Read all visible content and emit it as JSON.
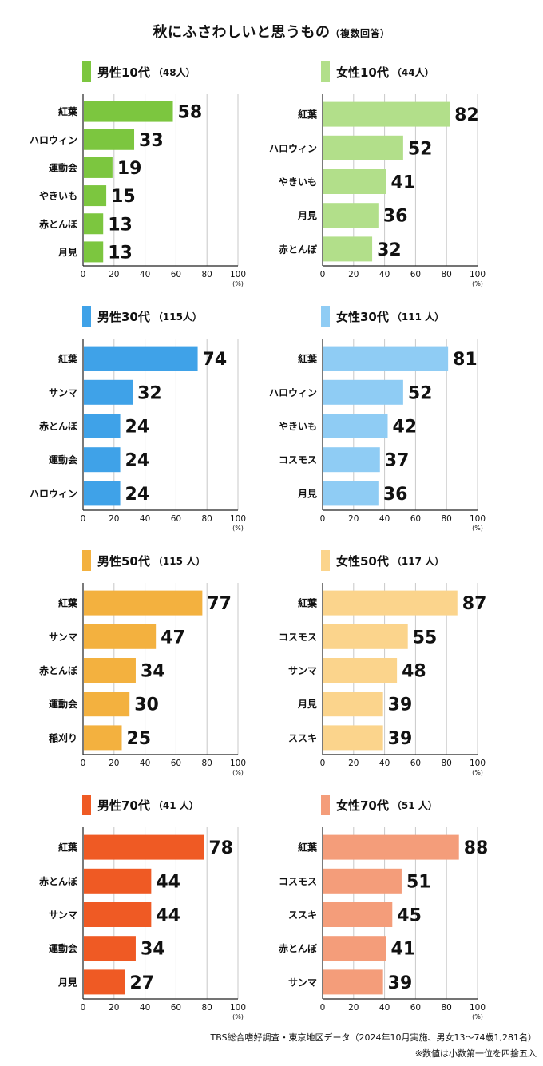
{
  "title": "秋にふさわしいと思うもの",
  "title_note": "（複数回答）",
  "footer": {
    "source": "TBS総合嗜好調査・東京地区データ（2024年10月実施、男女13〜74歳1,281名）",
    "note": "※数値は小数第一位を四捨五入"
  },
  "chart_data": [
    {
      "type": "bar",
      "title": "男性10代",
      "n": "（48人）",
      "color": "#7cc63f",
      "categories": [
        "紅葉",
        "ハロウィン",
        "運動会",
        "やきいも",
        "赤とんぼ",
        "月見"
      ],
      "values": [
        58,
        33,
        19,
        15,
        13,
        13
      ],
      "xticks": [
        "0",
        "20",
        "40",
        "60",
        "80",
        "100"
      ],
      "unit": "(%)",
      "xlim": [
        0,
        100
      ]
    },
    {
      "type": "bar",
      "title": "女性10代",
      "n": "（44人）",
      "color": "#b2df8a",
      "categories": [
        "紅葉",
        "ハロウィン",
        "やきいも",
        "月見",
        "赤とんぼ"
      ],
      "values": [
        82,
        52,
        41,
        36,
        32
      ],
      "xticks": [
        "0",
        "20",
        "40",
        "60",
        "80",
        "100"
      ],
      "unit": "(%)",
      "xlim": [
        0,
        100
      ]
    },
    {
      "type": "bar",
      "title": "男性30代",
      "n": "（115人）",
      "color": "#3fa2e8",
      "categories": [
        "紅葉",
        "サンマ",
        "赤とんぼ",
        "運動会",
        "ハロウィン"
      ],
      "values": [
        74,
        32,
        24,
        24,
        24
      ],
      "xticks": [
        "0",
        "20",
        "40",
        "60",
        "80",
        "100"
      ],
      "unit": "(%)",
      "xlim": [
        0,
        100
      ]
    },
    {
      "type": "bar",
      "title": "女性30代",
      "n": "（111 人）",
      "color": "#8fccf4",
      "categories": [
        "紅葉",
        "ハロウィン",
        "やきいも",
        "コスモス",
        "月見"
      ],
      "values": [
        81,
        52,
        42,
        37,
        36
      ],
      "xticks": [
        "0",
        "20",
        "40",
        "60",
        "80",
        "100"
      ],
      "unit": "(%)",
      "xlim": [
        0,
        100
      ]
    },
    {
      "type": "bar",
      "title": "男性50代",
      "n": "（115 人）",
      "color": "#f3b13f",
      "categories": [
        "紅葉",
        "サンマ",
        "赤とんぼ",
        "運動会",
        "稲刈り"
      ],
      "values": [
        77,
        47,
        34,
        30,
        25
      ],
      "xticks": [
        "0",
        "20",
        "40",
        "60",
        "80",
        "100"
      ],
      "unit": "(%)",
      "xlim": [
        0,
        100
      ]
    },
    {
      "type": "bar",
      "title": "女性50代",
      "n": "（117 人）",
      "color": "#fbd48c",
      "categories": [
        "紅葉",
        "コスモス",
        "サンマ",
        "月見",
        "ススキ"
      ],
      "values": [
        87,
        55,
        48,
        39,
        39
      ],
      "xticks": [
        "0",
        "20",
        "40",
        "60",
        "80",
        "100"
      ],
      "unit": "(%)",
      "xlim": [
        0,
        100
      ]
    },
    {
      "type": "bar",
      "title": "男性70代",
      "n": "（41 人）",
      "color": "#ef5a24",
      "categories": [
        "紅葉",
        "赤とんぼ",
        "サンマ",
        "運動会",
        "月見"
      ],
      "values": [
        78,
        44,
        44,
        34,
        27
      ],
      "xticks": [
        "0",
        "20",
        "40",
        "60",
        "80",
        "100"
      ],
      "unit": "(%)",
      "xlim": [
        0,
        100
      ]
    },
    {
      "type": "bar",
      "title": "女性70代",
      "n": "（51 人）",
      "color": "#f49d7a",
      "categories": [
        "紅葉",
        "コスモス",
        "ススキ",
        "赤とんぼ",
        "サンマ"
      ],
      "values": [
        88,
        51,
        45,
        41,
        39
      ],
      "xticks": [
        "0",
        "20",
        "40",
        "60",
        "80",
        "100"
      ],
      "unit": "(%)",
      "xlim": [
        0,
        100
      ]
    }
  ]
}
